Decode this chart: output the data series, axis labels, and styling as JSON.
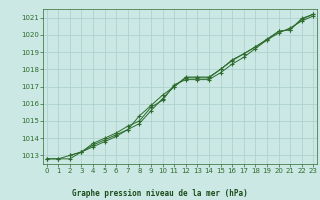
{
  "bg_color": "#cbe8e4",
  "grid_color": "#aacfcc",
  "line_color": "#2d6b2d",
  "title": "Graphe pression niveau de la mer (hPa)",
  "title_color": "#1a4d1a",
  "ylim": [
    1012.5,
    1021.5
  ],
  "xlim": [
    -0.3,
    23.3
  ],
  "yticks": [
    1013,
    1014,
    1015,
    1016,
    1017,
    1018,
    1019,
    1020,
    1021
  ],
  "xticks": [
    0,
    1,
    2,
    3,
    4,
    5,
    6,
    7,
    8,
    9,
    10,
    11,
    12,
    13,
    14,
    15,
    16,
    17,
    18,
    19,
    20,
    21,
    22,
    23
  ],
  "line1_x": [
    0,
    1,
    2,
    3,
    4,
    5,
    6,
    7,
    8,
    9,
    10,
    11,
    12,
    13,
    14,
    15,
    16,
    17,
    18,
    19,
    20,
    21,
    22,
    23
  ],
  "line1_y": [
    1012.8,
    1012.8,
    1012.8,
    1013.2,
    1013.5,
    1013.8,
    1014.1,
    1014.5,
    1015.3,
    1015.9,
    1016.5,
    1017.0,
    1017.5,
    1017.5,
    1017.5,
    1018.0,
    1018.5,
    1018.9,
    1019.3,
    1019.7,
    1020.1,
    1020.4,
    1020.8,
    1021.1
  ],
  "line2_x": [
    0,
    1,
    2,
    3,
    4,
    5,
    6,
    7,
    8,
    9,
    10,
    11,
    12,
    13,
    14,
    15,
    16,
    17,
    18,
    19,
    20,
    21,
    22,
    23
  ],
  "line2_y": [
    1012.8,
    1012.8,
    1013.0,
    1013.2,
    1013.7,
    1014.0,
    1014.3,
    1014.7,
    1015.0,
    1015.8,
    1016.2,
    1017.1,
    1017.4,
    1017.4,
    1017.4,
    1017.8,
    1018.3,
    1018.7,
    1019.2,
    1019.7,
    1020.2,
    1020.3,
    1020.9,
    1021.2
  ],
  "line3_x": [
    2,
    3,
    4,
    5,
    6,
    7,
    8,
    9,
    10,
    11,
    12,
    13,
    14,
    15,
    16,
    17,
    18,
    19,
    20,
    21,
    22,
    23
  ],
  "line3_y": [
    1013.0,
    1013.2,
    1013.6,
    1013.9,
    1014.2,
    1014.5,
    1014.85,
    1015.6,
    1016.3,
    1017.0,
    1017.55,
    1017.55,
    1017.55,
    1018.0,
    1018.55,
    1018.9,
    1019.3,
    1019.75,
    1020.2,
    1020.3,
    1020.95,
    1021.2
  ]
}
